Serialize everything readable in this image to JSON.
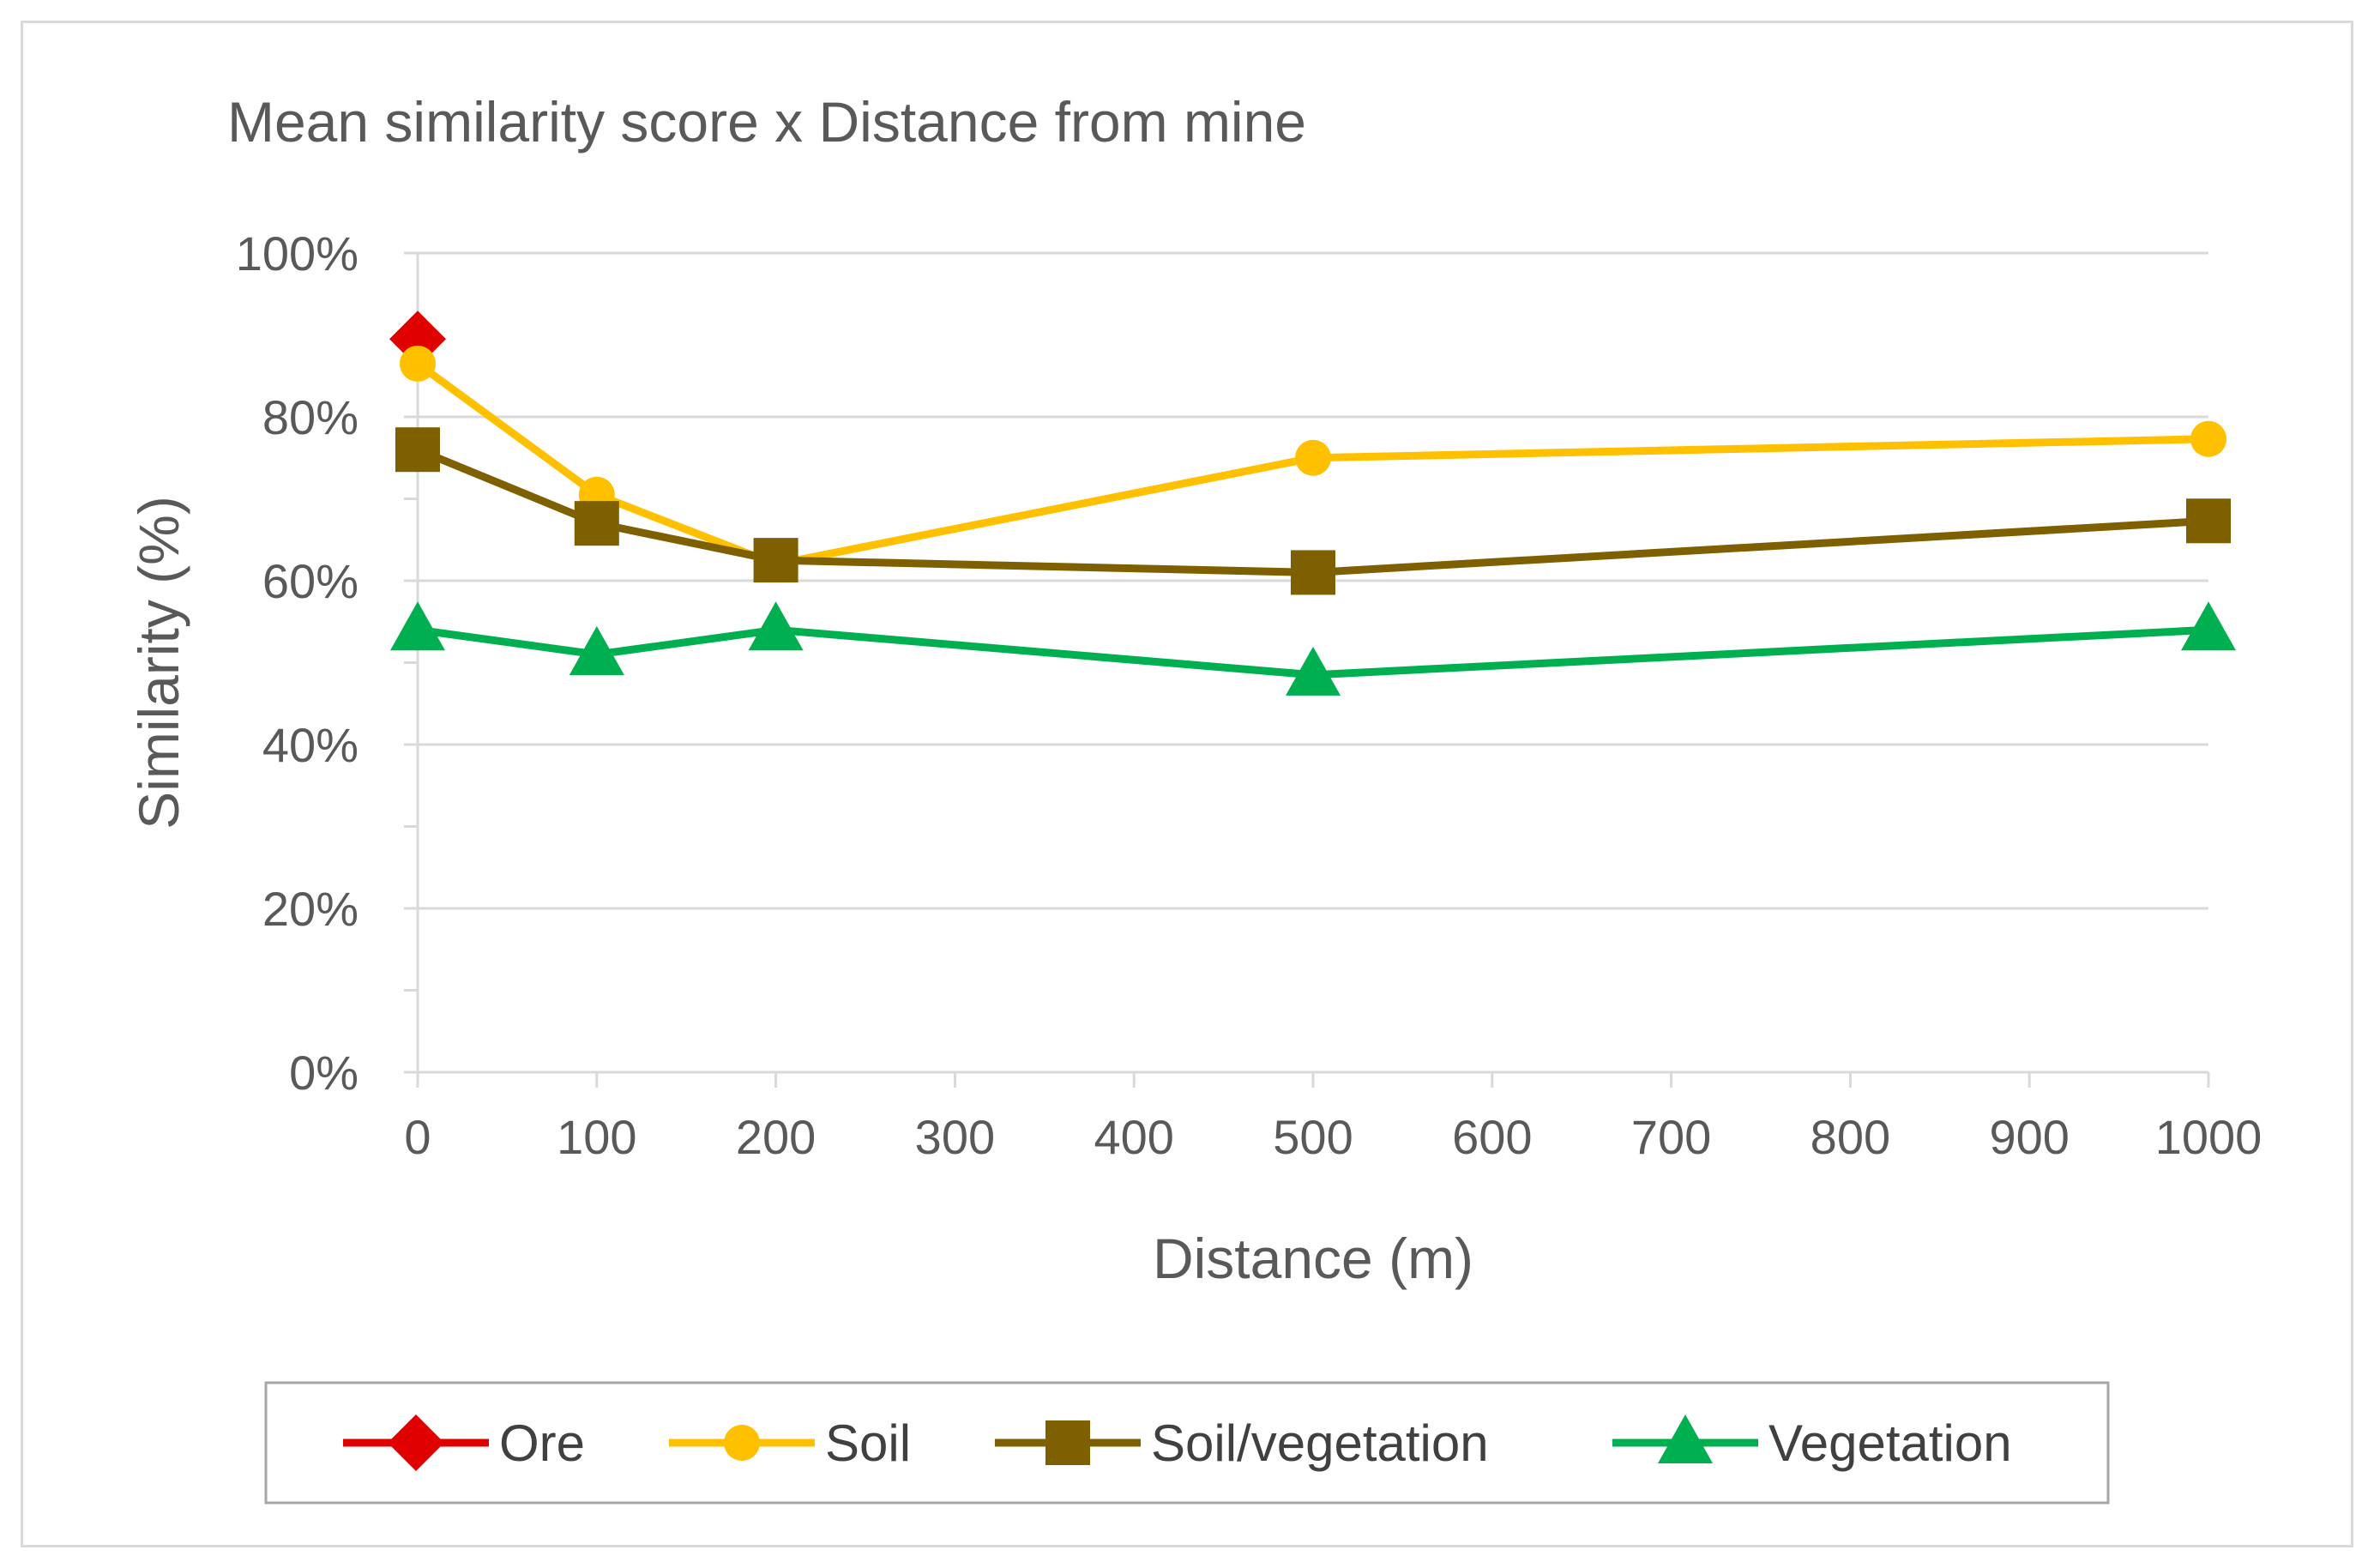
{
  "chart_data": {
    "type": "line",
    "title": "Mean similarity score x Distance from mine",
    "xlabel": "Distance (m)",
    "ylabel": "Similarity (%)",
    "xlim": [
      0,
      1000
    ],
    "ylim": [
      0,
      100
    ],
    "x_ticks": [
      0,
      100,
      200,
      300,
      400,
      500,
      600,
      700,
      800,
      900,
      1000
    ],
    "x_tick_labels": [
      "0",
      "100",
      "200",
      "300",
      "400",
      "500",
      "600",
      "700",
      "800",
      "900",
      "1000"
    ],
    "y_ticks": [
      0,
      20,
      40,
      60,
      80,
      100
    ],
    "y_tick_labels": [
      "0%",
      "20%",
      "40%",
      "60%",
      "80%",
      "100%"
    ],
    "grid": "horizontal",
    "legend_position": "bottom",
    "series": [
      {
        "name": "Ore",
        "color": "#e00000",
        "marker": "diamond",
        "x": [
          0
        ],
        "values": [
          89.5
        ]
      },
      {
        "name": "Soil",
        "color": "#ffc000",
        "marker": "circle",
        "x": [
          0,
          100,
          200,
          500,
          1000
        ],
        "values": [
          86.5,
          70.5,
          62,
          75,
          77.3
        ]
      },
      {
        "name": "Soil/vegetation",
        "color": "#7f6000",
        "marker": "square",
        "x": [
          0,
          100,
          200,
          500,
          1000
        ],
        "values": [
          76,
          67,
          62.5,
          61,
          67.3
        ]
      },
      {
        "name": "Vegetation",
        "color": "#00b050",
        "marker": "triangle",
        "x": [
          0,
          100,
          200,
          500,
          1000
        ],
        "values": [
          54,
          51,
          54,
          48.5,
          54
        ]
      }
    ]
  }
}
